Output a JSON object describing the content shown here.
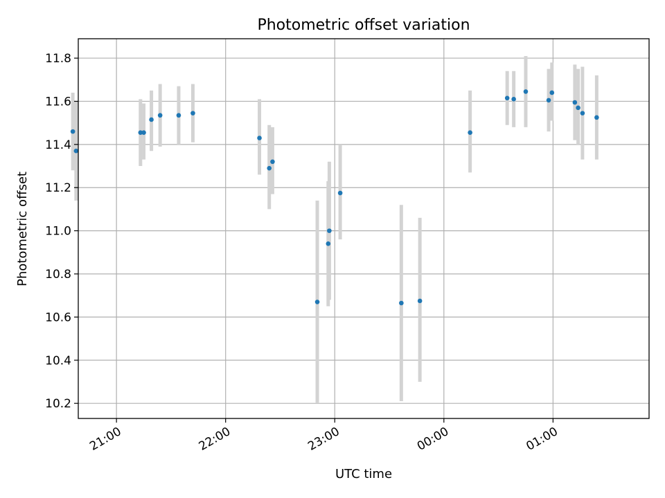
{
  "chart_data": {
    "type": "scatter",
    "title": "Photometric offset variation",
    "xlabel": "UTC time",
    "ylabel": "Photometric offset",
    "grid": true,
    "x_unit": "hours since 20:00 UTC",
    "xlim": [
      0.65,
      5.88
    ],
    "ylim": [
      10.13,
      11.89
    ],
    "xticks": [
      {
        "label": "21:00",
        "value": 1
      },
      {
        "label": "22:00",
        "value": 2
      },
      {
        "label": "23:00",
        "value": 3
      },
      {
        "label": "00:00",
        "value": 4
      },
      {
        "label": "01:00",
        "value": 5
      }
    ],
    "yticks": [
      10.2,
      10.4,
      10.6,
      10.8,
      11.0,
      11.2,
      11.4,
      11.6,
      11.8
    ],
    "colors": {
      "point": "#1f77b4",
      "errorbar": "#d3d3d3",
      "grid": "#b0b0b0"
    },
    "points": [
      {
        "x": 0.6,
        "y": 11.46,
        "ymin": 11.28,
        "ymax": 11.64
      },
      {
        "x": 0.63,
        "y": 11.37,
        "ymin": 11.14,
        "ymax": 11.6
      },
      {
        "x": 1.22,
        "y": 11.455,
        "ymin": 11.3,
        "ymax": 11.61
      },
      {
        "x": 1.25,
        "y": 11.455,
        "ymin": 11.33,
        "ymax": 11.59
      },
      {
        "x": 1.32,
        "y": 11.515,
        "ymin": 11.37,
        "ymax": 11.65
      },
      {
        "x": 1.4,
        "y": 11.535,
        "ymin": 11.39,
        "ymax": 11.68
      },
      {
        "x": 1.57,
        "y": 11.535,
        "ymin": 11.4,
        "ymax": 11.67
      },
      {
        "x": 1.7,
        "y": 11.545,
        "ymin": 11.41,
        "ymax": 11.68
      },
      {
        "x": 2.31,
        "y": 11.43,
        "ymin": 11.26,
        "ymax": 11.61
      },
      {
        "x": 2.4,
        "y": 11.29,
        "ymin": 11.1,
        "ymax": 11.49
      },
      {
        "x": 2.43,
        "y": 11.32,
        "ymin": 11.17,
        "ymax": 11.48
      },
      {
        "x": 2.84,
        "y": 10.67,
        "ymin": 10.2,
        "ymax": 11.14
      },
      {
        "x": 2.94,
        "y": 10.94,
        "ymin": 10.65,
        "ymax": 11.23
      },
      {
        "x": 2.95,
        "y": 11.0,
        "ymin": 10.68,
        "ymax": 11.32
      },
      {
        "x": 3.05,
        "y": 11.175,
        "ymin": 10.96,
        "ymax": 11.4
      },
      {
        "x": 3.61,
        "y": 10.665,
        "ymin": 10.21,
        "ymax": 11.12
      },
      {
        "x": 3.78,
        "y": 10.675,
        "ymin": 10.3,
        "ymax": 11.06
      },
      {
        "x": 4.24,
        "y": 11.455,
        "ymin": 11.27,
        "ymax": 11.65
      },
      {
        "x": 4.58,
        "y": 11.615,
        "ymin": 11.49,
        "ymax": 11.74
      },
      {
        "x": 4.64,
        "y": 11.61,
        "ymin": 11.48,
        "ymax": 11.74
      },
      {
        "x": 4.75,
        "y": 11.645,
        "ymin": 11.48,
        "ymax": 11.81
      },
      {
        "x": 4.96,
        "y": 11.605,
        "ymin": 11.46,
        "ymax": 11.75
      },
      {
        "x": 4.99,
        "y": 11.64,
        "ymin": 11.51,
        "ymax": 11.78
      },
      {
        "x": 5.2,
        "y": 11.595,
        "ymin": 11.42,
        "ymax": 11.77
      },
      {
        "x": 5.23,
        "y": 11.57,
        "ymin": 11.4,
        "ymax": 11.75
      },
      {
        "x": 5.27,
        "y": 11.545,
        "ymin": 11.33,
        "ymax": 11.76
      },
      {
        "x": 5.4,
        "y": 11.525,
        "ymin": 11.33,
        "ymax": 11.72
      }
    ]
  }
}
